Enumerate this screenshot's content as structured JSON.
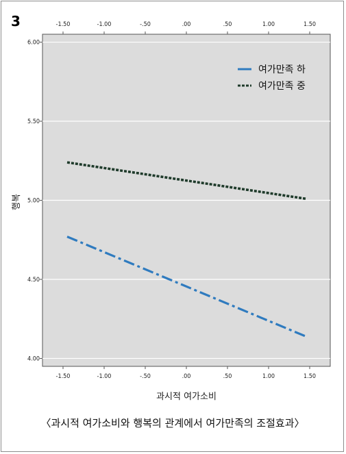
{
  "badge": "3",
  "caption": "〈과시적 여가소비와 행복의 관계에서 여가만족의 조절효과〉",
  "chart_data": {
    "type": "line",
    "title": "",
    "xlabel": "과시적 여가소비",
    "ylabel": "행복",
    "xlim": [
      -1.75,
      1.75
    ],
    "ylim": [
      3.95,
      6.05
    ],
    "x_ticks": [
      -1.5,
      -1.0,
      -0.5,
      0.0,
      0.5,
      1.0,
      1.5
    ],
    "x_tick_labels": [
      "-1.50",
      "-1.00",
      "-.50",
      ".00",
      ".50",
      "1.00",
      "1.50"
    ],
    "y_ticks": [
      4.0,
      4.5,
      5.0,
      5.5,
      6.0
    ],
    "y_tick_labels": [
      "4.00",
      "4.50",
      "5.00",
      "5.50",
      "6.00"
    ],
    "grid": "horizontal",
    "legend_position": "top-right",
    "series": [
      {
        "name": "여가만족 하",
        "x": [
          -1.45,
          1.45
        ],
        "y": [
          4.77,
          4.14
        ],
        "color": "#2f7bbf",
        "style": "dashdot"
      },
      {
        "name": "여가만족 중",
        "x": [
          -1.45,
          1.45
        ],
        "y": [
          5.24,
          5.01
        ],
        "color": "#1f3b2b",
        "style": "dotted"
      }
    ]
  }
}
